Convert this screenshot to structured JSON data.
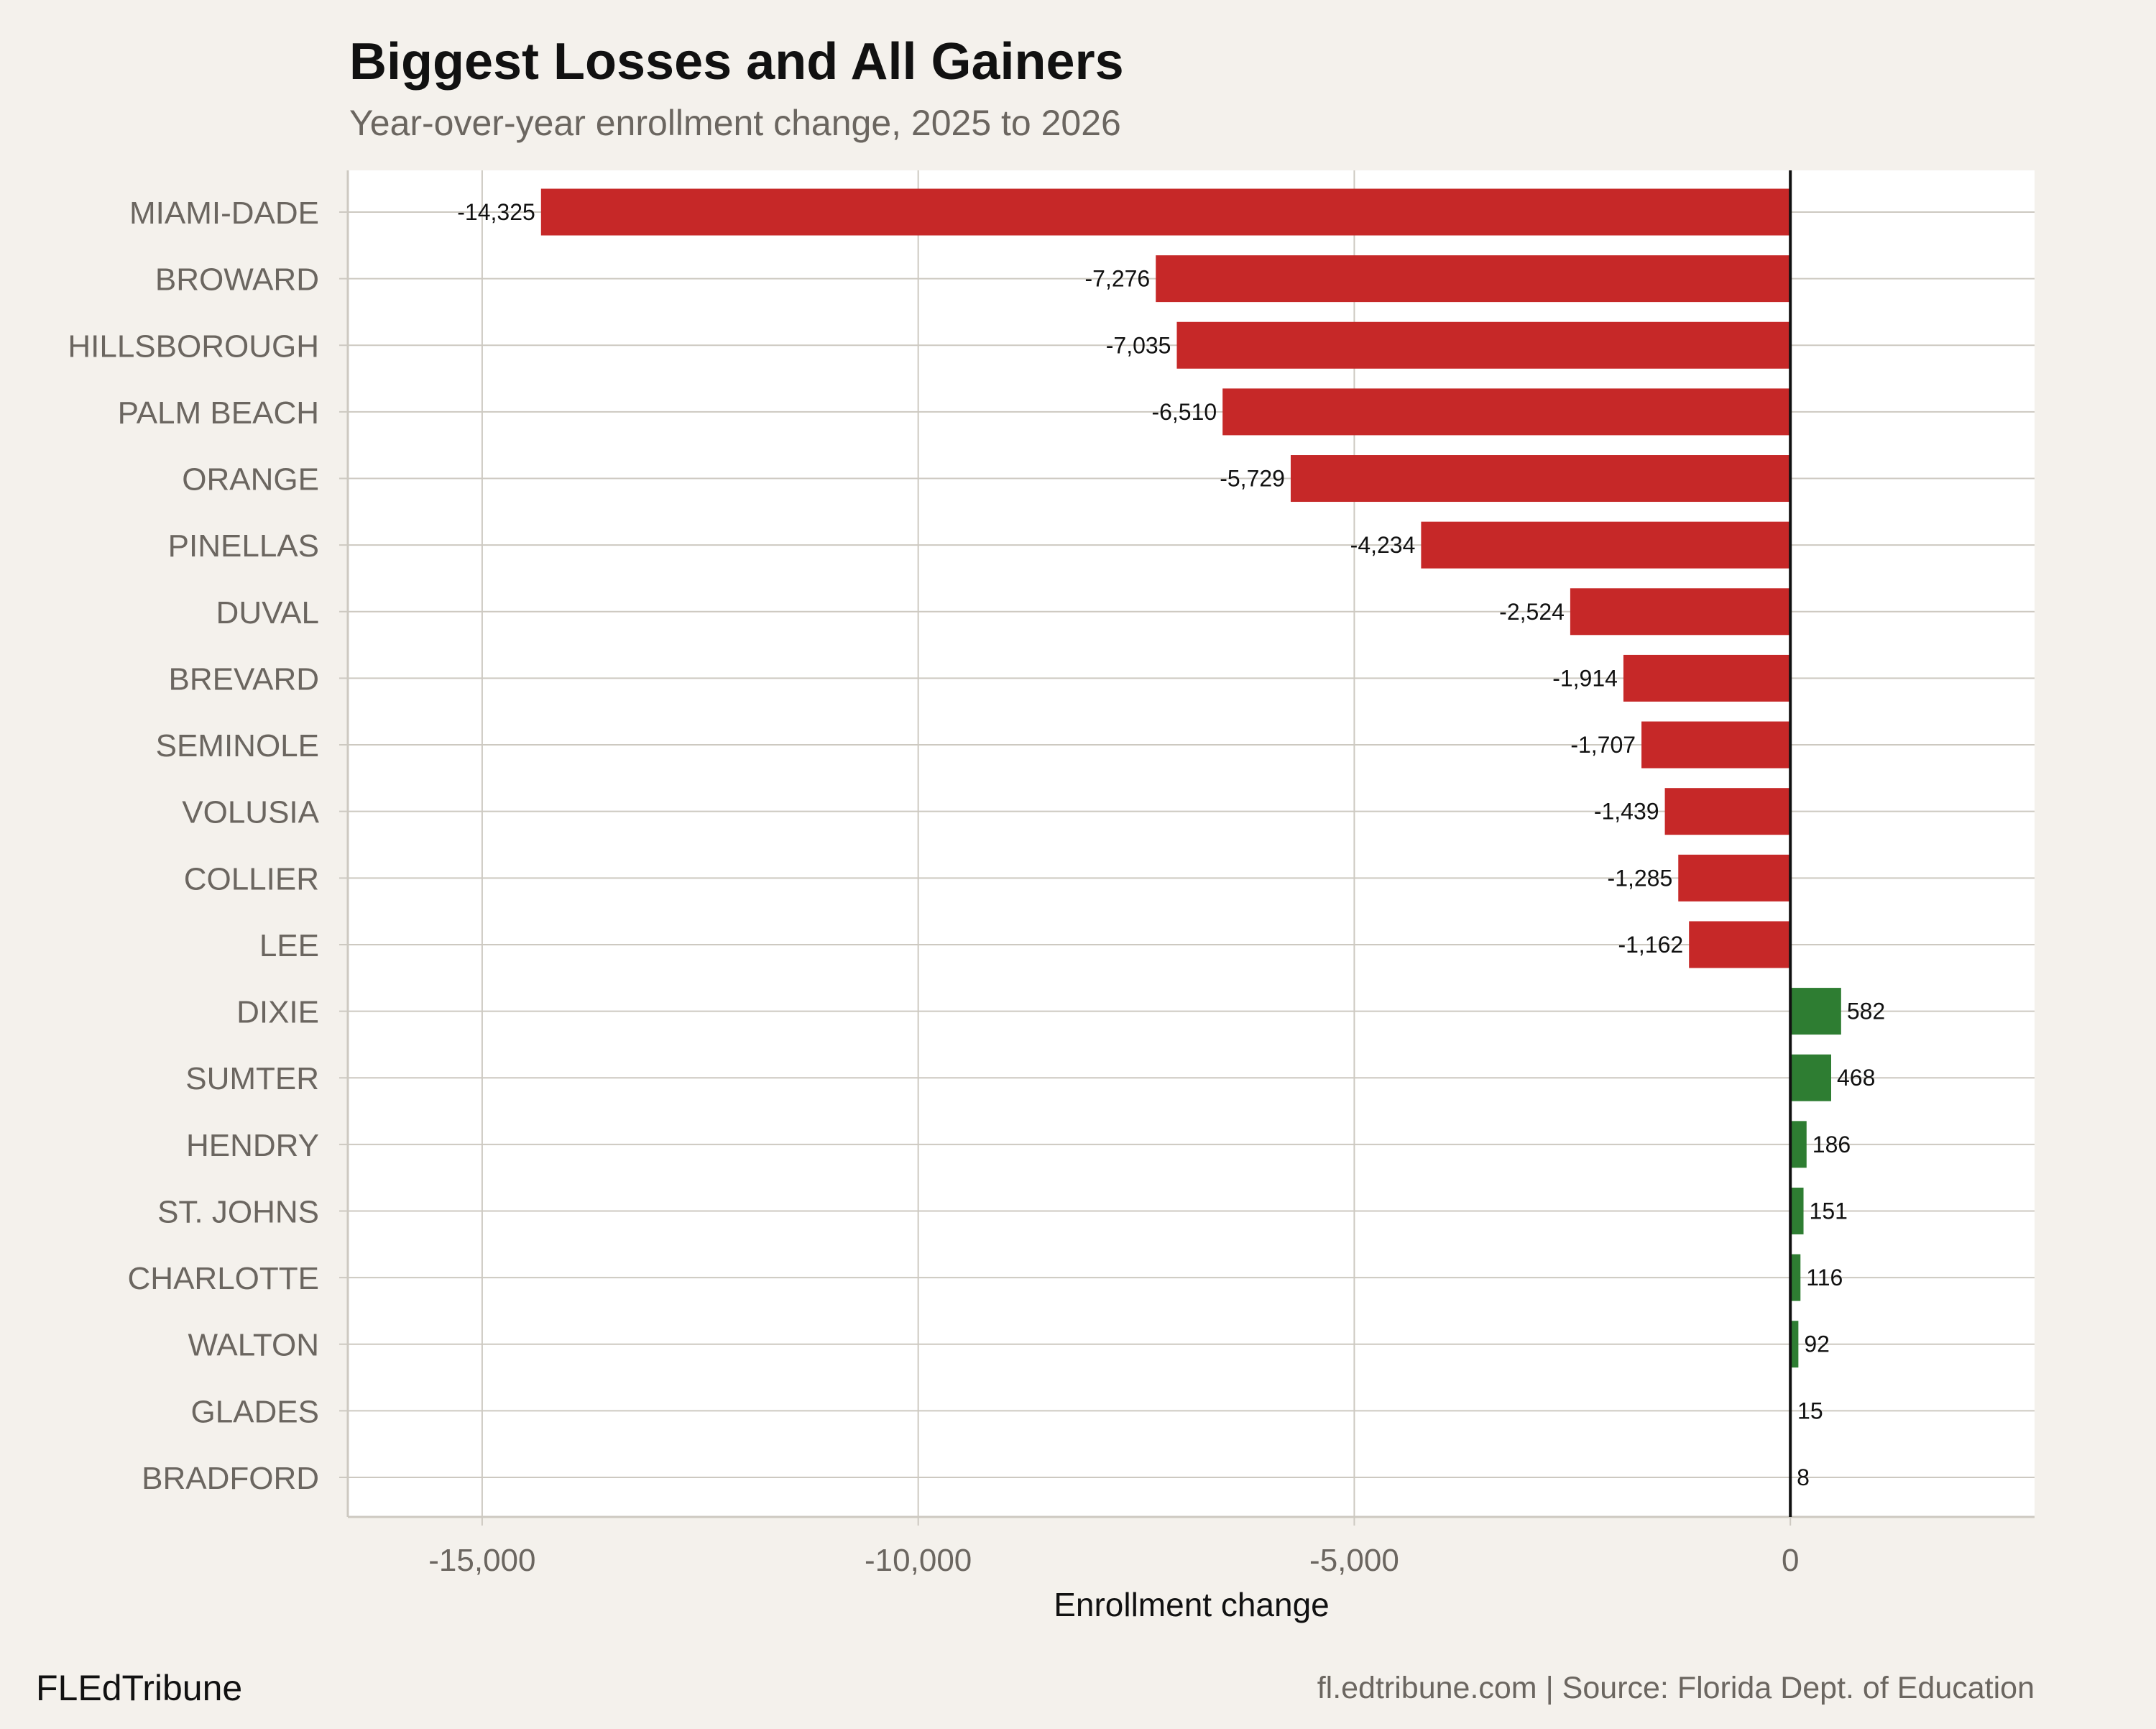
{
  "chart_data": {
    "type": "bar",
    "orientation": "horizontal",
    "title": "Biggest Losses and All Gainers",
    "subtitle": "Year-over-year enrollment change, 2025 to 2026",
    "xlabel": "Enrollment change",
    "ylabel": "",
    "xlim": [
      -16540,
      2800
    ],
    "xticks": [
      -15000,
      -10000,
      -5000,
      0
    ],
    "xtick_labels": [
      "-15,000",
      "-10,000",
      "-5,000",
      "0"
    ],
    "grid": true,
    "categories": [
      "MIAMI-DADE",
      "BROWARD",
      "HILLSBOROUGH",
      "PALM BEACH",
      "ORANGE",
      "PINELLAS",
      "DUVAL",
      "BREVARD",
      "SEMINOLE",
      "VOLUSIA",
      "COLLIER",
      "LEE",
      "DIXIE",
      "SUMTER",
      "HENDRY",
      "ST. JOHNS",
      "CHARLOTTE",
      "WALTON",
      "GLADES",
      "BRADFORD"
    ],
    "values": [
      -14325,
      -7276,
      -7035,
      -6510,
      -5729,
      -4234,
      -2524,
      -1914,
      -1707,
      -1439,
      -1285,
      -1162,
      582,
      468,
      186,
      151,
      116,
      92,
      15,
      8
    ],
    "data_labels": [
      "-14,325",
      "-7,276",
      "-7,035",
      "-6,510",
      "-5,729",
      "-4,234",
      "-2,524",
      "-1,914",
      "-1,707",
      "-1,439",
      "-1,285",
      "-1,162",
      "582",
      "468",
      "186",
      "151",
      "116",
      "92",
      "15",
      "8"
    ],
    "colors": {
      "loss": "#c62828",
      "gain": "#2e7d32",
      "background": "#f4f1ec",
      "panel": "#ffffff",
      "grid": "#cdc9c1"
    }
  },
  "footer": {
    "brand": "FLEdTribune",
    "source": "fl.edtribune.com | Source: Florida Dept. of Education"
  }
}
